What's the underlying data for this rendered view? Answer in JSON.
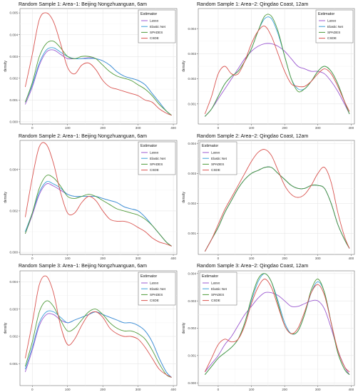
{
  "figure": {
    "y_axis_label": "density",
    "legend_title": "Estimator"
  },
  "colors": {
    "Lasso": "#9b59d0",
    "Elastic Net": "#3b9fd8",
    "SPADES": "#4f9a3a",
    "CSDE": "#d9534f"
  },
  "chart_data": [
    {
      "type": "line",
      "title": "Random Sample 1: Area−1: Beijing Nongzhuanguan, 6am",
      "xlabel": "",
      "ylabel": "density",
      "xlim": [
        -35,
        410
      ],
      "ylim": [
        -0.0001,
        0.0052
      ],
      "xticks": [
        0,
        100,
        200,
        300,
        400
      ],
      "xtick_labels": [
        "0",
        "100",
        "200",
        "300",
        "400"
      ],
      "yticks": [
        0,
        0.001,
        0.002,
        0.003,
        0.004,
        0.005
      ],
      "ytick_labels": [
        "0.000",
        "0.001",
        "0.002",
        "0.003",
        "0.004",
        "0.005"
      ],
      "legend": "top-right",
      "x": [
        -20,
        0,
        20,
        40,
        60,
        80,
        100,
        120,
        140,
        160,
        180,
        200,
        220,
        240,
        260,
        280,
        300,
        320,
        340,
        360,
        380,
        395
      ],
      "series": [
        {
          "name": "Lasso",
          "values": [
            0.0008,
            0.0016,
            0.0026,
            0.0032,
            0.0033,
            0.0031,
            0.0029,
            0.0029,
            0.0029,
            0.00295,
            0.0029,
            0.0028,
            0.0026,
            0.0023,
            0.0021,
            0.002,
            0.0019,
            0.0017,
            0.0013,
            0.0009,
            0.0005,
            0.0003
          ]
        },
        {
          "name": "Elastic Net",
          "values": [
            0.0009,
            0.0017,
            0.0027,
            0.0033,
            0.0034,
            0.0032,
            0.003,
            0.0029,
            0.0029,
            0.0029,
            0.0029,
            0.0028,
            0.0026,
            0.0023,
            0.0021,
            0.002,
            0.0019,
            0.0017,
            0.0013,
            0.0009,
            0.0005,
            0.0003
          ]
        },
        {
          "name": "SPADES",
          "values": [
            0.0009,
            0.0018,
            0.003,
            0.0036,
            0.0037,
            0.0034,
            0.003,
            0.0029,
            0.003,
            0.003,
            0.0029,
            0.0026,
            0.0023,
            0.0021,
            0.002,
            0.0019,
            0.0017,
            0.0015,
            0.0012,
            0.0008,
            0.0005,
            0.0003
          ]
        },
        {
          "name": "CSDE",
          "values": [
            0.0016,
            0.0031,
            0.0047,
            0.005,
            0.0046,
            0.0036,
            0.0025,
            0.0022,
            0.0026,
            0.0027,
            0.0024,
            0.0019,
            0.0016,
            0.0015,
            0.0014,
            0.0013,
            0.0012,
            0.001,
            0.0009,
            0.0006,
            0.0004,
            0.0003
          ]
        }
      ]
    },
    {
      "type": "line",
      "title": "Random Sample 1: Area−2: Qingdao Coast, 12am",
      "xlabel": "",
      "ylabel": "density",
      "xlim": [
        -60,
        410
      ],
      "ylim": [
        0.0002,
        0.0048
      ],
      "xticks": [
        0,
        100,
        200,
        300,
        400
      ],
      "xtick_labels": [
        "0",
        "100",
        "200",
        "300",
        "400"
      ],
      "yticks": [
        0.001,
        0.002,
        0.003,
        0.004
      ],
      "ytick_labels": [
        "0.001",
        "0.002",
        "0.003",
        "0.004"
      ],
      "legend": "top-right",
      "x": [
        -40,
        -20,
        0,
        20,
        40,
        60,
        80,
        100,
        120,
        140,
        160,
        180,
        200,
        220,
        240,
        260,
        280,
        300,
        320,
        340,
        360,
        380,
        395
      ],
      "series": [
        {
          "name": "Lasso",
          "values": [
            0.0005,
            0.0008,
            0.0012,
            0.0016,
            0.002,
            0.0024,
            0.0028,
            0.0031,
            0.0033,
            0.0034,
            0.0034,
            0.0033,
            0.0031,
            0.0028,
            0.0025,
            0.0024,
            0.0023,
            0.0023,
            0.0022,
            0.0019,
            0.0015,
            0.001,
            0.0006
          ]
        },
        {
          "name": "Elastic Net",
          "values": [
            0.0005,
            0.0008,
            0.0013,
            0.0018,
            0.0021,
            0.0023,
            0.0027,
            0.0032,
            0.0039,
            0.0044,
            0.0044,
            0.0038,
            0.0029,
            0.002,
            0.0016,
            0.0016,
            0.0019,
            0.0023,
            0.0025,
            0.0023,
            0.0018,
            0.0011,
            0.0006
          ]
        },
        {
          "name": "SPADES",
          "values": [
            0.0005,
            0.0008,
            0.0013,
            0.0018,
            0.0021,
            0.0023,
            0.0027,
            0.0032,
            0.0039,
            0.0045,
            0.0045,
            0.0039,
            0.0029,
            0.002,
            0.0015,
            0.0016,
            0.0019,
            0.0023,
            0.0025,
            0.0023,
            0.0018,
            0.0011,
            0.0006
          ]
        },
        {
          "name": "CSDE",
          "values": [
            0.0006,
            0.0013,
            0.0022,
            0.0025,
            0.0022,
            0.0022,
            0.0027,
            0.0034,
            0.0039,
            0.0041,
            0.0037,
            0.003,
            0.0023,
            0.0018,
            0.0017,
            0.0017,
            0.0019,
            0.0022,
            0.0024,
            0.0022,
            0.0017,
            0.0011,
            0.0007
          ]
        }
      ]
    },
    {
      "type": "line",
      "title": "Random Sample 2: Area−1: Beijing Nongzhuanguan, 6am",
      "xlabel": "",
      "ylabel": "density",
      "xlim": [
        -35,
        410
      ],
      "ylim": [
        -0.0001,
        0.0054
      ],
      "xticks": [
        0,
        100,
        200,
        300,
        400
      ],
      "xtick_labels": [
        "0",
        "100",
        "200",
        "300",
        "400"
      ],
      "yticks": [
        0,
        0.002,
        0.004
      ],
      "ytick_labels": [
        "0.000",
        "0.002",
        "0.004"
      ],
      "legend": "top-right",
      "x": [
        -20,
        0,
        20,
        40,
        60,
        80,
        100,
        120,
        140,
        160,
        180,
        200,
        220,
        240,
        260,
        280,
        300,
        320,
        340,
        360,
        380,
        395
      ],
      "series": [
        {
          "name": "Lasso",
          "values": [
            0.0009,
            0.0018,
            0.0028,
            0.0033,
            0.0032,
            0.003,
            0.0028,
            0.0027,
            0.0027,
            0.0027,
            0.0027,
            0.0026,
            0.0025,
            0.0024,
            0.0022,
            0.0021,
            0.002,
            0.0017,
            0.0013,
            0.0009,
            0.0005,
            0.0003
          ]
        },
        {
          "name": "Elastic Net",
          "values": [
            0.001,
            0.0019,
            0.0029,
            0.0034,
            0.0033,
            0.0031,
            0.0028,
            0.0027,
            0.0027,
            0.0027,
            0.0027,
            0.0026,
            0.0025,
            0.0024,
            0.0022,
            0.0021,
            0.002,
            0.0017,
            0.0013,
            0.0009,
            0.0005,
            0.0003
          ]
        },
        {
          "name": "SPADES",
          "values": [
            0.0009,
            0.0019,
            0.0031,
            0.0037,
            0.0036,
            0.0032,
            0.0027,
            0.0026,
            0.0027,
            0.0028,
            0.0027,
            0.0025,
            0.0023,
            0.0021,
            0.002,
            0.0019,
            0.0018,
            0.0016,
            0.0013,
            0.0009,
            0.0005,
            0.0003
          ]
        },
        {
          "name": "CSDE",
          "values": [
            0.0017,
            0.0036,
            0.0051,
            0.0052,
            0.0043,
            0.0029,
            0.0019,
            0.0019,
            0.0024,
            0.0027,
            0.0025,
            0.002,
            0.0016,
            0.0015,
            0.0015,
            0.0014,
            0.0012,
            0.001,
            0.0007,
            0.0005,
            0.0004,
            0.0003
          ]
        }
      ]
    },
    {
      "type": "line",
      "title": "Random Sample 2: Area−2: Qingdao Coast, 12am",
      "xlabel": "",
      "ylabel": "density",
      "xlim": [
        -60,
        410
      ],
      "ylim": [
        0.0003,
        0.0041
      ],
      "xticks": [
        0,
        100,
        200,
        300,
        400
      ],
      "xtick_labels": [
        "0",
        "100",
        "200",
        "300",
        "400"
      ],
      "yticks": [
        0.001,
        0.002,
        0.003,
        0.004
      ],
      "ytick_labels": [
        "0.001",
        "0.002",
        "0.003",
        "0.004"
      ],
      "legend": "top-left",
      "x": [
        -40,
        -20,
        0,
        20,
        40,
        60,
        80,
        100,
        120,
        140,
        160,
        180,
        200,
        220,
        240,
        260,
        280,
        300,
        320,
        340,
        360,
        380,
        395
      ],
      "series": [
        {
          "name": "Lasso",
          "values": [
            0.0004,
            0.0008,
            0.0012,
            0.0017,
            0.0021,
            0.0025,
            0.0028,
            0.003,
            0.0031,
            0.0032,
            0.0032,
            0.003,
            0.0028,
            0.0026,
            0.0025,
            0.0025,
            0.0026,
            0.0026,
            0.0025,
            0.002,
            0.0013,
            0.0008,
            0.0005
          ]
        },
        {
          "name": "Elastic Net",
          "values": [
            0.0004,
            0.0008,
            0.0012,
            0.0017,
            0.0021,
            0.0025,
            0.0028,
            0.003,
            0.0031,
            0.0032,
            0.0032,
            0.003,
            0.0028,
            0.0026,
            0.0025,
            0.0025,
            0.0026,
            0.0026,
            0.0025,
            0.002,
            0.0013,
            0.0008,
            0.0005
          ]
        },
        {
          "name": "SPADES",
          "values": [
            0.0004,
            0.0008,
            0.0012,
            0.0017,
            0.0021,
            0.0025,
            0.0028,
            0.003,
            0.0031,
            0.0032,
            0.0032,
            0.003,
            0.0028,
            0.0026,
            0.0025,
            0.0025,
            0.0026,
            0.0026,
            0.0025,
            0.002,
            0.0013,
            0.0008,
            0.0005
          ]
        },
        {
          "name": "CSDE",
          "values": [
            0.0004,
            0.0008,
            0.0013,
            0.0018,
            0.0022,
            0.0026,
            0.003,
            0.0034,
            0.0037,
            0.0038,
            0.0036,
            0.0031,
            0.0026,
            0.0023,
            0.0022,
            0.0023,
            0.0026,
            0.003,
            0.0032,
            0.0027,
            0.0017,
            0.0009,
            0.0005
          ]
        }
      ]
    },
    {
      "type": "line",
      "title": "Random Sample 3: Area−1: Beijing Nongzhuanguan, 6am",
      "xlabel": "",
      "ylabel": "density",
      "xlim": [
        -35,
        410
      ],
      "ylim": [
        0.0002,
        0.0044
      ],
      "xticks": [
        0,
        100,
        200,
        300,
        400
      ],
      "xtick_labels": [
        "0",
        "100",
        "200",
        "300",
        "400"
      ],
      "yticks": [
        0.001,
        0.002,
        0.003,
        0.004
      ],
      "ytick_labels": [
        "0.001",
        "0.002",
        "0.003",
        "0.004"
      ],
      "legend": "top-right",
      "x": [
        -20,
        0,
        20,
        40,
        60,
        80,
        100,
        120,
        140,
        160,
        180,
        200,
        220,
        240,
        260,
        280,
        300,
        320,
        340,
        360,
        380,
        395
      ],
      "series": [
        {
          "name": "Lasso",
          "values": [
            0.0007,
            0.0015,
            0.0024,
            0.0028,
            0.0028,
            0.0026,
            0.0025,
            0.0026,
            0.0027,
            0.0028,
            0.0029,
            0.0028,
            0.0027,
            0.0026,
            0.0025,
            0.0025,
            0.0024,
            0.0022,
            0.0018,
            0.0012,
            0.0007,
            0.0005
          ]
        },
        {
          "name": "Elastic Net",
          "values": [
            0.0008,
            0.0016,
            0.0025,
            0.0029,
            0.0029,
            0.0027,
            0.0025,
            0.0026,
            0.0027,
            0.0028,
            0.0029,
            0.0028,
            0.0027,
            0.0026,
            0.0025,
            0.0025,
            0.0024,
            0.0022,
            0.0018,
            0.0012,
            0.0007,
            0.0005
          ]
        },
        {
          "name": "SPADES",
          "values": [
            0.0009,
            0.0018,
            0.0029,
            0.0033,
            0.0031,
            0.0026,
            0.0022,
            0.0023,
            0.0026,
            0.0029,
            0.003,
            0.0028,
            0.0025,
            0.0023,
            0.0022,
            0.0022,
            0.0021,
            0.0019,
            0.0015,
            0.001,
            0.0006,
            0.0005
          ]
        },
        {
          "name": "CSDE",
          "values": [
            0.0012,
            0.0025,
            0.0039,
            0.0042,
            0.0036,
            0.0024,
            0.0017,
            0.0019,
            0.0024,
            0.0028,
            0.0029,
            0.0027,
            0.0023,
            0.0021,
            0.002,
            0.002,
            0.0019,
            0.0016,
            0.0012,
            0.0008,
            0.0006,
            0.0005
          ]
        }
      ]
    },
    {
      "type": "line",
      "title": "Random Sample 3: Area−2: Qingdao Coast, 12am",
      "xlabel": "",
      "ylabel": "density",
      "xlim": [
        -60,
        410
      ],
      "ylim": [
        -0.0001,
        0.0041
      ],
      "xticks": [
        0,
        100,
        200,
        300,
        400
      ],
      "xtick_labels": [
        "0",
        "100",
        "200",
        "300",
        "400"
      ],
      "yticks": [
        0,
        0.001,
        0.002,
        0.003,
        0.004
      ],
      "ytick_labels": [
        "0.000",
        "0.001",
        "0.002",
        "0.003",
        "0.004"
      ],
      "legend": "top-left",
      "x": [
        -40,
        -20,
        0,
        20,
        40,
        60,
        80,
        100,
        120,
        140,
        160,
        180,
        200,
        220,
        240,
        260,
        280,
        300,
        320,
        340,
        360,
        380,
        395
      ],
      "series": [
        {
          "name": "Lasso",
          "values": [
            0.0004,
            0.0007,
            0.001,
            0.0014,
            0.0017,
            0.0021,
            0.0025,
            0.0028,
            0.0031,
            0.0033,
            0.0033,
            0.0032,
            0.003,
            0.0028,
            0.0028,
            0.0029,
            0.003,
            0.003,
            0.0027,
            0.002,
            0.0012,
            0.0006,
            0.0003
          ]
        },
        {
          "name": "Elastic Net",
          "values": [
            0.0003,
            0.0006,
            0.0009,
            0.0011,
            0.0013,
            0.0016,
            0.0022,
            0.003,
            0.0037,
            0.004,
            0.0037,
            0.003,
            0.0022,
            0.0018,
            0.0019,
            0.0025,
            0.0033,
            0.0037,
            0.0033,
            0.0022,
            0.0011,
            0.0005,
            0.0003
          ]
        },
        {
          "name": "SPADES",
          "values": [
            0.0003,
            0.0006,
            0.0009,
            0.0011,
            0.0013,
            0.0016,
            0.0022,
            0.0031,
            0.0038,
            0.004,
            0.0037,
            0.0029,
            0.0021,
            0.0018,
            0.0019,
            0.0025,
            0.0034,
            0.0038,
            0.0033,
            0.0022,
            0.0011,
            0.0005,
            0.0003
          ]
        },
        {
          "name": "CSDE",
          "values": [
            0.0004,
            0.0009,
            0.0014,
            0.0016,
            0.0015,
            0.0016,
            0.0021,
            0.0029,
            0.0035,
            0.0038,
            0.0035,
            0.0028,
            0.0021,
            0.0018,
            0.002,
            0.0026,
            0.0033,
            0.0036,
            0.0032,
            0.0022,
            0.0012,
            0.0006,
            0.0004
          ]
        }
      ]
    }
  ]
}
